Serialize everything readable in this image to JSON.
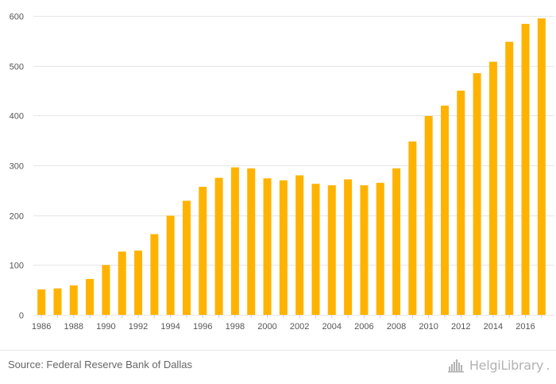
{
  "chart_data": {
    "type": "bar",
    "categories": [
      "1986",
      "1987",
      "1988",
      "1989",
      "1990",
      "1991",
      "1992",
      "1993",
      "1994",
      "1995",
      "1996",
      "1997",
      "1998",
      "1999",
      "2000",
      "2001",
      "2002",
      "2003",
      "2004",
      "2005",
      "2006",
      "2007",
      "2008",
      "2009",
      "2010",
      "2011",
      "2012",
      "2013",
      "2014",
      "2015",
      "2016",
      "2017"
    ],
    "x_tick_labels": [
      "1986",
      "1988",
      "1990",
      "1992",
      "1994",
      "1996",
      "1998",
      "2000",
      "2002",
      "2004",
      "2006",
      "2008",
      "2010",
      "2012",
      "2014",
      "2016"
    ],
    "values": [
      51,
      53,
      59,
      72,
      100,
      127,
      129,
      162,
      199,
      229,
      257,
      275,
      296,
      294,
      274,
      270,
      280,
      263,
      260,
      272,
      260,
      265,
      294,
      348,
      399,
      420,
      450,
      485,
      508,
      548,
      584,
      595
    ],
    "ylim": [
      0,
      600
    ],
    "y_ticks": [
      0,
      100,
      200,
      300,
      400,
      500,
      600
    ],
    "title": "",
    "xlabel": "",
    "ylabel": "",
    "grid": true,
    "colors": {
      "bar": "#FFB300",
      "grid": "#e6e6e6",
      "tick_text": "#555555"
    }
  },
  "footer": {
    "source": "Source: Federal Reserve Bank of Dallas",
    "brand": "HelgiLibrary"
  }
}
